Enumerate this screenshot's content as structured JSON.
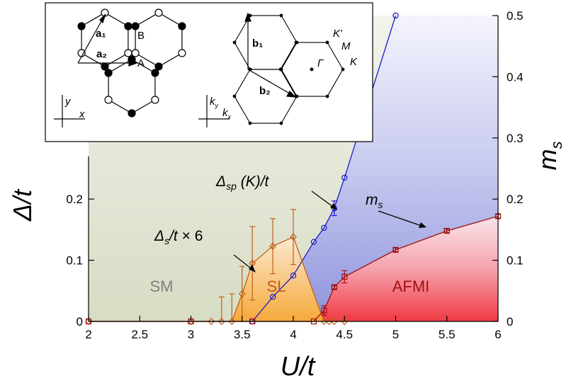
{
  "chart_data": {
    "type": "line",
    "xlabel": "U/t",
    "ylabel": "Δ/t",
    "y2label": "m_s",
    "xlim": [
      2,
      6
    ],
    "ylim": [
      0,
      0.5
    ],
    "y2lim": [
      0,
      0.5
    ],
    "x_ticks": [
      "2",
      "2.5",
      "3",
      "3.5",
      "4",
      "4.5",
      "5",
      "5.5",
      "6"
    ],
    "y_ticks": [
      "0",
      "0.1",
      "0.2"
    ],
    "y2_ticks": [
      "0",
      "0.1",
      "0.2",
      "0.3",
      "0.4",
      "0.5"
    ],
    "regions": [
      {
        "label": "SM",
        "color": "#808080"
      },
      {
        "label": "SL",
        "color": "#c0581a"
      },
      {
        "label": "AFMI",
        "color": "#a01010"
      }
    ],
    "series": [
      {
        "name": "Δsp(K)/t",
        "color": "#1a1acc",
        "marker": "circle",
        "x": [
          3.6,
          3.8,
          4.0,
          4.2,
          4.3,
          4.4,
          4.5,
          5.0
        ],
        "y": [
          0.0,
          0.04,
          0.075,
          0.13,
          0.153,
          0.185,
          0.235,
          0.5
        ],
        "err": [
          0,
          0,
          0,
          0,
          0,
          0.012,
          0,
          0
        ]
      },
      {
        "name": "Δs/t × 6",
        "color": "#c0601a",
        "marker": "diamond",
        "x": [
          2.0,
          3.0,
          3.2,
          3.3,
          3.4,
          3.5,
          3.6,
          3.8,
          4.0,
          4.3,
          4.35,
          4.4,
          4.5
        ],
        "y": [
          0.0,
          0.0,
          0.0,
          0.0,
          0.0,
          0.045,
          0.095,
          0.123,
          0.138,
          0.0,
          0.0,
          0.0,
          0.0
        ],
        "err": [
          0,
          0,
          0,
          0.04,
          0.045,
          0.045,
          0.06,
          0.045,
          0.045,
          0,
          0,
          0,
          0
        ]
      },
      {
        "name": "m_s",
        "color": "#a01010",
        "marker": "square",
        "x": [
          2.0,
          3.0,
          3.6,
          4.2,
          4.3,
          4.4,
          4.5,
          5.0,
          5.5,
          6.0
        ],
        "y": [
          0.0,
          0.0,
          0.0,
          0.0,
          0.018,
          0.056,
          0.073,
          0.117,
          0.148,
          0.172
        ],
        "err": [
          0,
          0,
          0,
          0,
          0.008,
          0.003,
          0.01,
          0.003,
          0.003,
          0.003
        ]
      }
    ],
    "annotations": [
      {
        "text": "Δsp(K)/t"
      },
      {
        "text": "Δs/t × 6"
      },
      {
        "text": "m_s"
      }
    ]
  },
  "inset": {
    "real_space_labels": {
      "a1": "a₁",
      "a2": "a₂",
      "A": "A",
      "B": "B",
      "x": "x",
      "y": "y"
    },
    "k_space_labels": {
      "b1": "b₁",
      "b2": "b₂",
      "Kprime": "K′",
      "M": "M",
      "K": "K",
      "Gamma": "Γ",
      "kx": "k",
      "ky": "k",
      "kx_sub": "x",
      "ky_sub": "y"
    }
  }
}
